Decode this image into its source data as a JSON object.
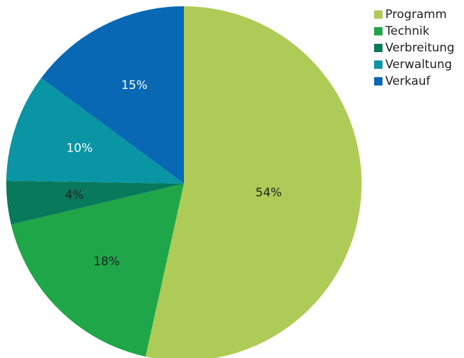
{
  "chart_data": {
    "type": "pie",
    "categories": [
      "Programm",
      "Technik",
      "Verbreitung",
      "Verwaltung",
      "Verkauf"
    ],
    "values": [
      54,
      18,
      4,
      10,
      15
    ],
    "value_labels": [
      "54%",
      "18%",
      "4%",
      "10%",
      "15%"
    ],
    "colors": [
      "#afcb57",
      "#1fa648",
      "#08795a",
      "#0a95a5",
      "#0868b3"
    ],
    "label_colors": [
      "#222222",
      "#222222",
      "#222222",
      "#ffffff",
      "#ffffff"
    ],
    "legend": "top-right"
  }
}
